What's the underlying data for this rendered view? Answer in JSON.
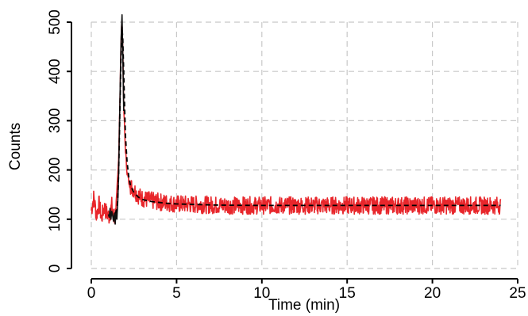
{
  "chart_data": {
    "type": "line",
    "title": "",
    "xlabel": "Time (min)",
    "ylabel": "Counts",
    "xlim": [
      0,
      25
    ],
    "ylim": [
      0,
      500
    ],
    "xticks": [
      0,
      5,
      10,
      15,
      20,
      25
    ],
    "yticks": [
      0,
      100,
      200,
      300,
      400,
      500
    ],
    "grid": true,
    "series": [
      {
        "style": "noisy-line",
        "color": "#e8262b",
        "x": [
          0.0,
          0.15,
          0.3,
          0.45,
          0.6,
          0.75,
          0.9,
          1.05,
          1.2,
          1.35,
          1.5,
          1.6,
          1.7,
          1.75,
          1.8,
          1.85,
          1.9,
          2.0,
          2.1,
          2.2,
          2.3,
          2.5,
          2.7,
          3.0,
          3.5,
          4.0,
          4.5,
          5.0,
          6.0,
          7.0,
          8.0,
          9.0,
          10.0,
          11.0,
          12.0,
          13.0,
          14.0,
          15.0,
          16.0,
          17.0,
          18.0,
          19.0,
          20.0,
          21.0,
          22.0,
          23.0,
          24.0
        ],
        "y": [
          118,
          145,
          108,
          132,
          102,
          125,
          112,
          105,
          128,
          98,
          140,
          220,
          380,
          470,
          500,
          440,
          330,
          240,
          195,
          175,
          168,
          160,
          150,
          142,
          138,
          135,
          133,
          131,
          130,
          129,
          128,
          128,
          128,
          128,
          128,
          128,
          128,
          128,
          128,
          128,
          128,
          128,
          128,
          128,
          128,
          128,
          128
        ],
        "noise_amplitude": 18
      },
      {
        "style": "noisy-line",
        "color": "#111111",
        "x": [
          1.0,
          1.05,
          1.1,
          1.15,
          1.2,
          1.25,
          1.3,
          1.35,
          1.4,
          1.45,
          1.5,
          1.55,
          1.6,
          1.65,
          1.7,
          1.75,
          1.8,
          1.85,
          1.9
        ],
        "y": [
          110,
          104,
          122,
          100,
          116,
          108,
          96,
          112,
          90,
          118,
          100,
          135,
          190,
          280,
          380,
          470,
          515,
          430,
          320
        ]
      },
      {
        "style": "dashed-fit",
        "color": "#000000",
        "x": [
          1.4,
          1.5,
          1.55,
          1.6,
          1.65,
          1.7,
          1.75,
          1.8,
          1.85,
          1.9,
          1.95,
          2.0,
          2.1,
          2.2,
          2.3,
          2.5,
          2.75,
          3.0,
          3.5,
          4.0,
          4.5,
          5.0,
          6.0,
          7.0,
          8.0,
          10.0,
          12.0,
          15.0,
          18.0,
          21.0,
          24.0
        ],
        "y": [
          112,
          118,
          140,
          190,
          270,
          360,
          440,
          490,
          465,
          400,
          330,
          270,
          215,
          185,
          168,
          154,
          145,
          140,
          136,
          134,
          132,
          131,
          130,
          129,
          128.5,
          128,
          128,
          128,
          128,
          128,
          128
        ]
      }
    ]
  }
}
